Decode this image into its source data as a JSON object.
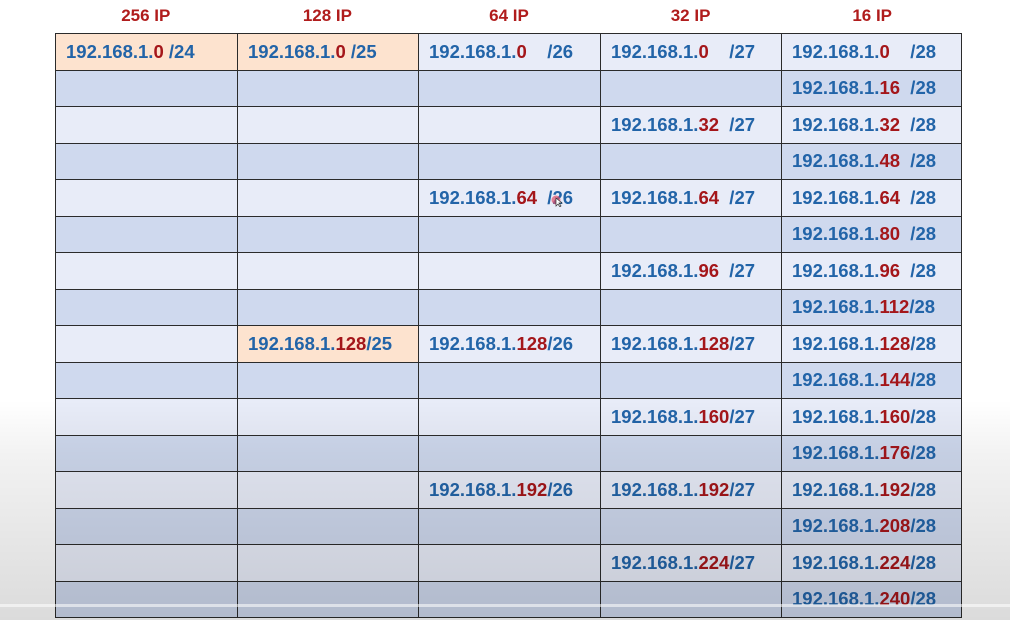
{
  "headers": [
    "256 IP",
    "128 IP",
    "64 IP",
    "32 IP",
    "16 IP"
  ],
  "rows": [
    [
      {
        "prefix": "192.168.1.",
        "octet": "0",
        "suffix": " /24",
        "orange": true
      },
      {
        "prefix": "192.168.1.",
        "octet": "0",
        "suffix": " /25",
        "orange": true
      },
      {
        "prefix": "192.168.1.",
        "octet": "0",
        "suffix": "    /26"
      },
      {
        "prefix": "192.168.1.",
        "octet": "0",
        "suffix": "    /27"
      },
      {
        "prefix": "192.168.1.",
        "octet": "0",
        "suffix": "    /28"
      }
    ],
    [
      null,
      null,
      null,
      null,
      {
        "prefix": "192.168.1.",
        "octet": "16",
        "suffix": "  /28"
      }
    ],
    [
      null,
      null,
      null,
      {
        "prefix": "192.168.1.",
        "octet": "32",
        "suffix": "  /27"
      },
      {
        "prefix": "192.168.1.",
        "octet": "32",
        "suffix": "  /28"
      }
    ],
    [
      null,
      null,
      null,
      null,
      {
        "prefix": "192.168.1.",
        "octet": "48",
        "suffix": "  /28"
      }
    ],
    [
      null,
      null,
      {
        "prefix": "192.168.1.",
        "octet": "64",
        "suffix": "  /26"
      },
      {
        "prefix": "192.168.1.",
        "octet": "64",
        "suffix": "  /27"
      },
      {
        "prefix": "192.168.1.",
        "octet": "64",
        "suffix": "  /28"
      }
    ],
    [
      null,
      null,
      null,
      null,
      {
        "prefix": "192.168.1.",
        "octet": "80",
        "suffix": "  /28"
      }
    ],
    [
      null,
      null,
      null,
      {
        "prefix": "192.168.1.",
        "octet": "96",
        "suffix": "  /27"
      },
      {
        "prefix": "192.168.1.",
        "octet": "96",
        "suffix": "  /28"
      }
    ],
    [
      null,
      null,
      null,
      null,
      {
        "prefix": "192.168.1.",
        "octet": "112",
        "suffix": "/28"
      }
    ],
    [
      null,
      {
        "prefix": "192.168.1.",
        "octet": "128",
        "suffix": "/25",
        "orange": true
      },
      {
        "prefix": "192.168.1.",
        "octet": "128",
        "suffix": "/26"
      },
      {
        "prefix": "192.168.1.",
        "octet": "128",
        "suffix": "/27"
      },
      {
        "prefix": "192.168.1.",
        "octet": "128",
        "suffix": "/28"
      }
    ],
    [
      null,
      null,
      null,
      null,
      {
        "prefix": "192.168.1.",
        "octet": "144",
        "suffix": "/28"
      }
    ],
    [
      null,
      null,
      null,
      {
        "prefix": "192.168.1.",
        "octet": "160",
        "suffix": "/27"
      },
      {
        "prefix": "192.168.1.",
        "octet": "160",
        "suffix": "/28"
      }
    ],
    [
      null,
      null,
      null,
      null,
      {
        "prefix": "192.168.1.",
        "octet": "176",
        "suffix": "/28"
      }
    ],
    [
      null,
      null,
      {
        "prefix": "192.168.1.",
        "octet": "192",
        "suffix": "/26"
      },
      {
        "prefix": "192.168.1.",
        "octet": "192",
        "suffix": "/27"
      },
      {
        "prefix": "192.168.1.",
        "octet": "192",
        "suffix": "/28"
      }
    ],
    [
      null,
      null,
      null,
      null,
      {
        "prefix": "192.168.1.",
        "octet": "208",
        "suffix": "/28"
      }
    ],
    [
      null,
      null,
      null,
      {
        "prefix": "192.168.1.",
        "octet": "224",
        "suffix": "/27"
      },
      {
        "prefix": "192.168.1.",
        "octet": "224",
        "suffix": "/28"
      }
    ],
    [
      null,
      null,
      null,
      null,
      {
        "prefix": "192.168.1.",
        "octet": "240",
        "suffix": "/28"
      }
    ]
  ],
  "colors": {
    "blue": "#2264a8",
    "red": "#a4161a",
    "orange_cell": "#fde3cf",
    "row_light": "#e8ecf8",
    "row_dark": "#cfd9ee"
  },
  "icons": {
    "cursor": "mouse-pointer-icon"
  }
}
